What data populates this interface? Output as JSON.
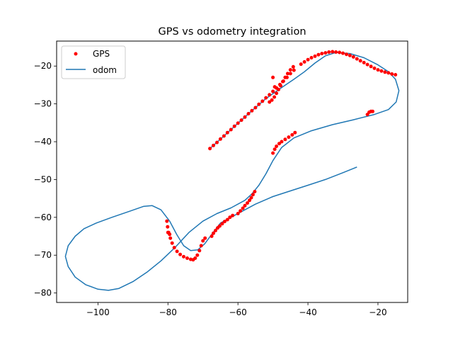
{
  "chart_data": {
    "type": "scatter",
    "title": "GPS vs odometry integration",
    "xlabel": "",
    "ylabel": "",
    "xlim": [
      -111.8,
      -11.5
    ],
    "ylim": [
      -82.5,
      -13.4
    ],
    "xticks": [
      -100,
      -80,
      -60,
      -40,
      -20
    ],
    "yticks": [
      -80,
      -70,
      -60,
      -50,
      -40,
      -30,
      -20
    ],
    "xtick_labels": [
      "−100",
      "−80",
      "−60",
      "−40",
      "−20"
    ],
    "ytick_labels": [
      "−80",
      "−70",
      "−60",
      "−50",
      "−40",
      "−30",
      "−20"
    ],
    "grid": false,
    "legend_position": "top-left",
    "series": [
      {
        "name": "GPS",
        "kind": "scatter",
        "color": "#ff0000",
        "segments": [
          [
            [
              -68,
              -41.8
            ],
            [
              -67,
              -41
            ],
            [
              -66,
              -40.2
            ],
            [
              -65,
              -39.3
            ],
            [
              -64,
              -38.5
            ],
            [
              -63,
              -37.6
            ],
            [
              -62,
              -36.8
            ],
            [
              -61,
              -35.9
            ],
            [
              -60,
              -35.1
            ],
            [
              -59,
              -34.3
            ],
            [
              -58,
              -33.5
            ],
            [
              -57,
              -32.6
            ],
            [
              -56,
              -31.8
            ],
            [
              -55,
              -31
            ],
            [
              -54,
              -30.1
            ],
            [
              -53,
              -29.3
            ],
            [
              -52,
              -28.4
            ],
            [
              -51,
              -27.6
            ],
            [
              -50,
              -26.7
            ],
            [
              -49,
              -25.8
            ],
            [
              -48,
              -24.9
            ],
            [
              -47,
              -24
            ],
            [
              -46,
              -23
            ],
            [
              -45,
              -22
            ],
            [
              -44,
              -21.1
            ]
          ],
          [
            [
              -51,
              -29.5
            ],
            [
              -50.3,
              -29
            ],
            [
              -49.6,
              -28.2
            ],
            [
              -49,
              -27.2
            ],
            [
              -48.4,
              -26.2
            ],
            [
              -47.8,
              -25.2
            ],
            [
              -47.2,
              -24.1
            ],
            [
              -46.5,
              -23
            ],
            [
              -45.8,
              -22
            ],
            [
              -45,
              -21
            ],
            [
              -44.2,
              -20.2
            ]
          ],
          [
            [
              -50,
              -23
            ],
            [
              -49.5,
              -25.5
            ]
          ],
          [
            [
              -42,
              -19.5
            ],
            [
              -41,
              -18.9
            ],
            [
              -40,
              -18.3
            ],
            [
              -39,
              -17.8
            ],
            [
              -38,
              -17.4
            ],
            [
              -37,
              -17
            ],
            [
              -36,
              -16.7
            ],
            [
              -35,
              -16.5
            ],
            [
              -34,
              -16.3
            ],
            [
              -33,
              -16.2
            ],
            [
              -32,
              -16.3
            ],
            [
              -31,
              -16.4
            ],
            [
              -30,
              -16.6
            ],
            [
              -29,
              -16.9
            ],
            [
              -28,
              -17.2
            ],
            [
              -27,
              -17.6
            ],
            [
              -26,
              -18.1
            ],
            [
              -25,
              -18.6
            ],
            [
              -24,
              -19.1
            ],
            [
              -23,
              -19.6
            ],
            [
              -22,
              -20.1
            ],
            [
              -21,
              -20.6
            ],
            [
              -20,
              -21
            ],
            [
              -19,
              -21.3
            ],
            [
              -18,
              -21.6
            ],
            [
              -17,
              -21.8
            ],
            [
              -16,
              -22.1
            ],
            [
              -15,
              -22.3
            ]
          ],
          [
            [
              -23,
              -32.8
            ],
            [
              -22.5,
              -32.2
            ],
            [
              -22,
              -32
            ],
            [
              -21.5,
              -32
            ]
          ],
          [
            [
              -50,
              -43
            ],
            [
              -49.5,
              -42
            ],
            [
              -49,
              -41.2
            ],
            [
              -48.2,
              -40.5
            ],
            [
              -47.5,
              -40
            ],
            [
              -46.5,
              -39.4
            ],
            [
              -45.5,
              -38.8
            ],
            [
              -44.5,
              -38.2
            ],
            [
              -43.7,
              -37.6
            ]
          ],
          [
            [
              -80.3,
              -61
            ],
            [
              -80.1,
              -62.5
            ],
            [
              -79.8,
              -64
            ],
            [
              -79.3,
              -65.5
            ],
            [
              -78.8,
              -66.8
            ],
            [
              -78.2,
              -68
            ],
            [
              -77.4,
              -69
            ],
            [
              -76.5,
              -69.8
            ],
            [
              -75.5,
              -70.4
            ],
            [
              -74.5,
              -70.8
            ],
            [
              -73.5,
              -71.1
            ],
            [
              -72.8,
              -71.2
            ],
            [
              -72.2,
              -70.8
            ],
            [
              -71.6,
              -70
            ],
            [
              -71,
              -68.8
            ],
            [
              -70.5,
              -67.5
            ],
            [
              -70,
              -66.2
            ],
            [
              -69.4,
              -65.5
            ]
          ],
          [
            [
              -80,
              -64
            ],
            [
              -79.5,
              -64.5
            ]
          ],
          [
            [
              -67.5,
              -65
            ],
            [
              -67,
              -64.2
            ],
            [
              -66.4,
              -63.5
            ],
            [
              -65.8,
              -62.8
            ],
            [
              -65.2,
              -62.3
            ],
            [
              -64.5,
              -61.7
            ],
            [
              -63.8,
              -61.1
            ],
            [
              -63,
              -60.6
            ],
            [
              -62.3,
              -60
            ],
            [
              -61.5,
              -59.5
            ]
          ],
          [
            [
              -60,
              -59
            ],
            [
              -59.3,
              -58.3
            ],
            [
              -58.6,
              -57.6
            ],
            [
              -58,
              -56.9
            ],
            [
              -57.3,
              -56.2
            ],
            [
              -56.7,
              -55.5
            ],
            [
              -56.2,
              -54.8
            ],
            [
              -55.7,
              -54
            ],
            [
              -55.2,
              -53.2
            ]
          ]
        ]
      },
      {
        "name": "odom",
        "kind": "line",
        "color": "#1f77b4",
        "points": [
          [
            -68,
            -41.8
          ],
          [
            -64,
            -38.5
          ],
          [
            -60,
            -35.1
          ],
          [
            -56,
            -31.8
          ],
          [
            -52,
            -28.6
          ],
          [
            -48,
            -26
          ],
          [
            -44,
            -23.5
          ],
          [
            -41,
            -21.5
          ],
          [
            -38,
            -19.2
          ],
          [
            -35,
            -17.3
          ],
          [
            -32,
            -16.4
          ],
          [
            -28,
            -16.7
          ],
          [
            -24,
            -17.8
          ],
          [
            -20,
            -19.7
          ],
          [
            -17,
            -21.5
          ],
          [
            -15,
            -23.5
          ],
          [
            -14,
            -26.5
          ],
          [
            -14.8,
            -29.5
          ],
          [
            -17,
            -31.5
          ],
          [
            -21,
            -32.8
          ],
          [
            -27,
            -34.2
          ],
          [
            -33,
            -35.5
          ],
          [
            -39,
            -37.1
          ],
          [
            -44,
            -39
          ],
          [
            -47.5,
            -41.5
          ],
          [
            -50,
            -45
          ],
          [
            -52,
            -48.5
          ],
          [
            -54,
            -51.5
          ],
          [
            -56,
            -53.8
          ],
          [
            -58,
            -55.5
          ],
          [
            -62,
            -57.5
          ],
          [
            -66,
            -59
          ],
          [
            -70,
            -61
          ],
          [
            -74,
            -64
          ],
          [
            -78,
            -68
          ],
          [
            -82,
            -71.5
          ],
          [
            -86,
            -74.5
          ],
          [
            -90,
            -77
          ],
          [
            -94,
            -78.8
          ],
          [
            -97,
            -79.3
          ],
          [
            -100,
            -79
          ],
          [
            -103.5,
            -77.8
          ],
          [
            -106.5,
            -75.8
          ],
          [
            -108.5,
            -73
          ],
          [
            -109.3,
            -70.3
          ],
          [
            -108.5,
            -67.5
          ],
          [
            -106.5,
            -65
          ],
          [
            -104,
            -63
          ],
          [
            -100.5,
            -61.5
          ],
          [
            -96,
            -60
          ],
          [
            -91,
            -58.4
          ],
          [
            -87,
            -57.1
          ],
          [
            -84.5,
            -56.9
          ],
          [
            -82,
            -58
          ],
          [
            -79.5,
            -61
          ],
          [
            -77.5,
            -64.5
          ],
          [
            -75.5,
            -67.5
          ],
          [
            -73.5,
            -68.8
          ],
          [
            -71.5,
            -68.6
          ],
          [
            -69.5,
            -67
          ],
          [
            -67.5,
            -64.5
          ],
          [
            -65,
            -61.5
          ],
          [
            -62,
            -60
          ],
          [
            -59,
            -58.5
          ],
          [
            -55,
            -56.5
          ],
          [
            -50,
            -54.5
          ],
          [
            -45,
            -53
          ],
          [
            -40,
            -51.5
          ],
          [
            -35,
            -50
          ],
          [
            -30,
            -48.2
          ],
          [
            -26,
            -46.7
          ]
        ]
      }
    ]
  }
}
